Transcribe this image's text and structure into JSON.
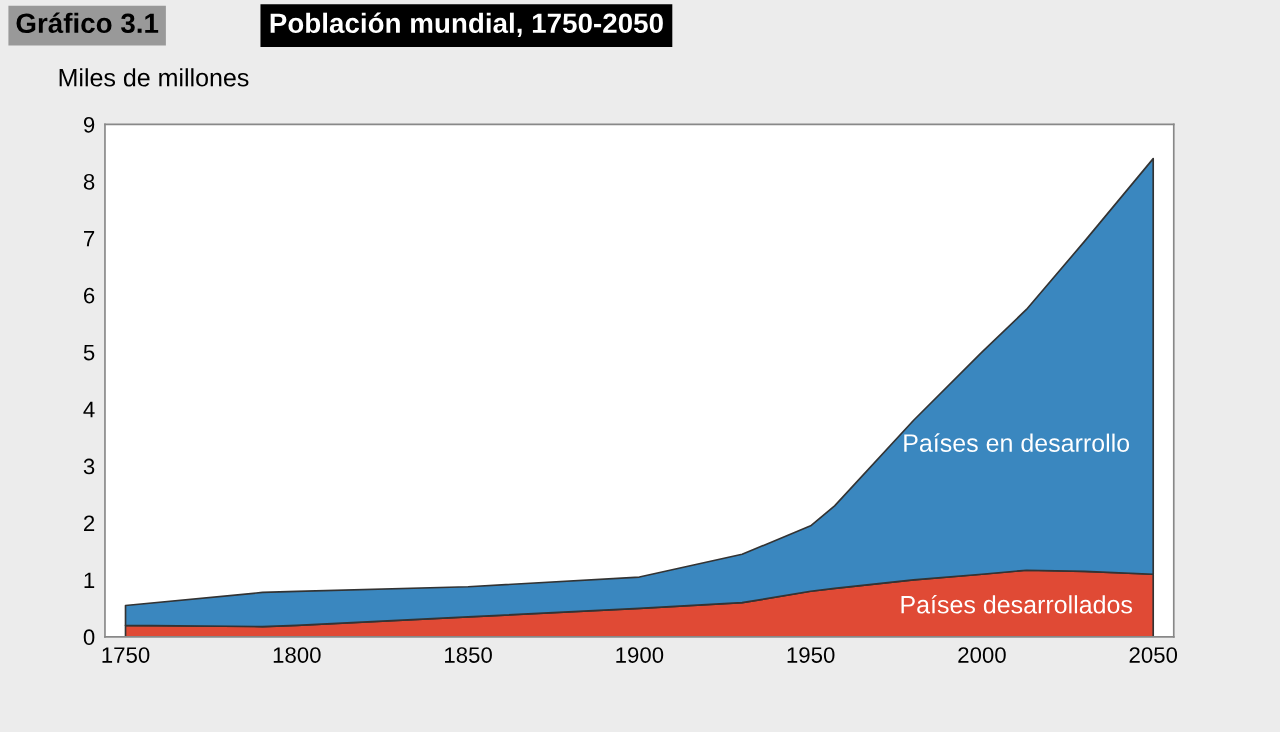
{
  "chart_data": {
    "type": "area",
    "title": "Población mundial, 1750-2050",
    "subtitle": "Gráfico 3.1",
    "ylabel": "Miles de millones",
    "stacked": true,
    "x": [
      1750,
      1790,
      1800,
      1850,
      1900,
      1930,
      1950,
      1957,
      1980,
      2000,
      2013,
      2030,
      2050
    ],
    "series": [
      {
        "name": "Países desarrollados",
        "color": "#e04a35",
        "values": [
          0.2,
          0.18,
          0.2,
          0.35,
          0.5,
          0.6,
          0.8,
          0.85,
          1.0,
          1.1,
          1.17,
          1.15,
          1.1
        ]
      },
      {
        "name": "Países en desarrollo",
        "color": "#3a87bf",
        "values": [
          0.35,
          0.6,
          0.6,
          0.53,
          0.55,
          0.85,
          1.15,
          1.45,
          2.8,
          3.9,
          4.58,
          5.8,
          7.3
        ]
      }
    ],
    "xlim": [
      1744,
      2056
    ],
    "ylim": [
      0,
      9
    ],
    "xticks": [
      1750,
      1800,
      1850,
      1900,
      1950,
      2000,
      2050
    ],
    "yticks": [
      0,
      1,
      2,
      3,
      4,
      5,
      6,
      7,
      8,
      9
    ],
    "grid": false,
    "legend": false
  }
}
